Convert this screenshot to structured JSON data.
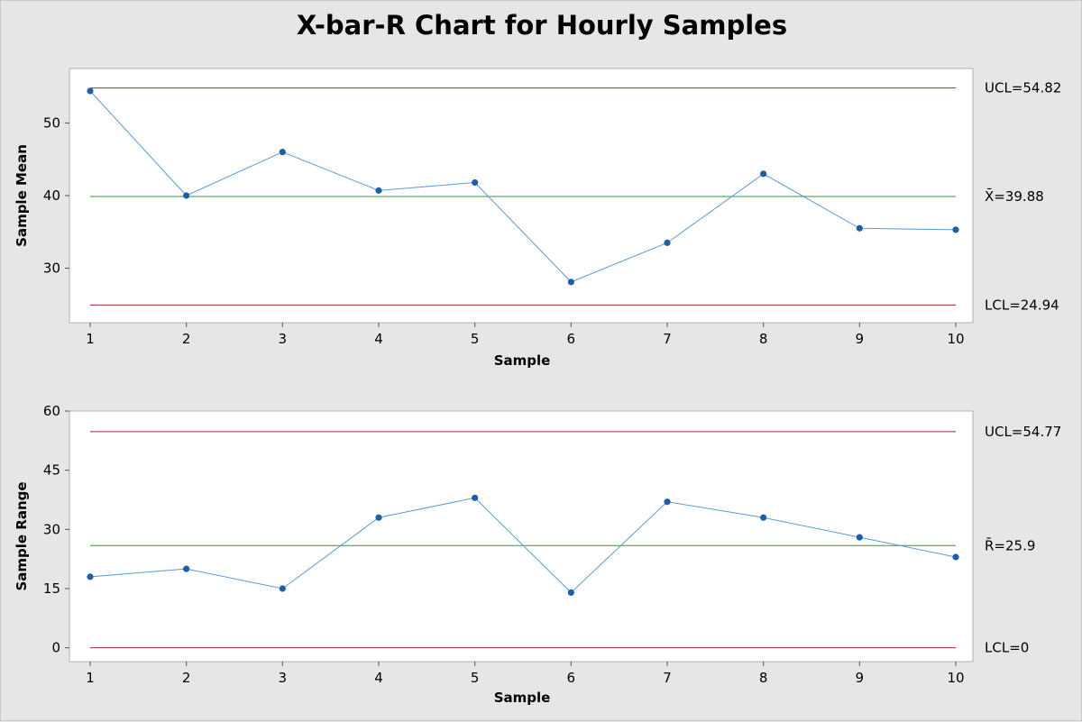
{
  "title": "X-bar-R Chart for Hourly Samples",
  "colors": {
    "background": "#e6e6e6",
    "plot_area": "#ffffff",
    "series_line": "#5b9bd5",
    "series_point": "#1f5fa8",
    "control_limit": "#a0282d",
    "center_line": "#2e9a3a",
    "frame": "#b0b0b0"
  },
  "chart_data": [
    {
      "type": "line",
      "chart_id": "xbar",
      "xlabel": "Sample",
      "ylabel": "Sample Mean",
      "x": [
        1,
        2,
        3,
        4,
        5,
        6,
        7,
        8,
        9,
        10
      ],
      "xticks": [
        "1",
        "2",
        "3",
        "4",
        "5",
        "6",
        "7",
        "8",
        "9",
        "10"
      ],
      "yticks": [
        30,
        40,
        50
      ],
      "ylim": [
        22.5,
        57.5
      ],
      "series": [
        {
          "values": [
            54.4,
            40.0,
            46.0,
            40.7,
            41.8,
            28.1,
            33.5,
            43.0,
            35.5,
            35.3
          ]
        }
      ],
      "control_lines": [
        {
          "kind": "ucl",
          "value": 54.82,
          "label": "UCL=54.82"
        },
        {
          "kind": "center",
          "value": 39.88,
          "label": "X̄=39.88"
        },
        {
          "kind": "lcl",
          "value": 24.94,
          "label": "LCL=24.94"
        }
      ],
      "grid": false
    },
    {
      "type": "line",
      "chart_id": "range",
      "xlabel": "Sample",
      "ylabel": "Sample Range",
      "x": [
        1,
        2,
        3,
        4,
        5,
        6,
        7,
        8,
        9,
        10
      ],
      "xticks": [
        "1",
        "2",
        "3",
        "4",
        "5",
        "6",
        "7",
        "8",
        "9",
        "10"
      ],
      "yticks": [
        0,
        15,
        30,
        45,
        60
      ],
      "ylim": [
        -3.5,
        60
      ],
      "series": [
        {
          "values": [
            18,
            20,
            15,
            33,
            38,
            14,
            37,
            33,
            28,
            23
          ]
        }
      ],
      "control_lines": [
        {
          "kind": "ucl",
          "value": 54.77,
          "label": "UCL=54.77"
        },
        {
          "kind": "center",
          "value": 25.9,
          "label": "R̄=25.9"
        },
        {
          "kind": "lcl",
          "value": 0,
          "label": "LCL=0"
        }
      ],
      "grid": false
    }
  ]
}
